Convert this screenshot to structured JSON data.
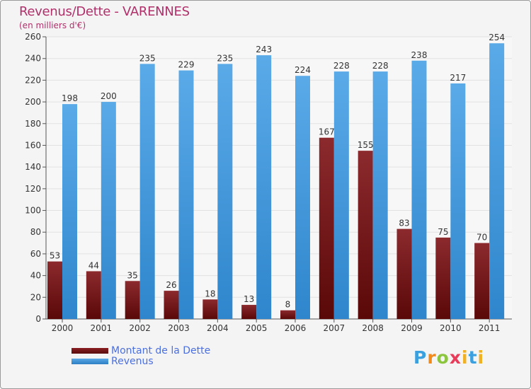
{
  "header": {
    "title": "Revenus/Dette - VARENNES",
    "subtitle": "(en milliers d'€)"
  },
  "legend": {
    "debt_label": "Montant de la Dette",
    "revenue_label": "Revenus"
  },
  "logo": {
    "text": "Proxiti"
  },
  "colors": {
    "debt": "#7a1a1e",
    "revenue": "#4a9fe0",
    "title": "#b0306a"
  },
  "chart_data": {
    "type": "bar",
    "title": "Revenus/Dette - VARENNES",
    "ylabel": "(en milliers d'€)",
    "xlabel": "",
    "categories": [
      "2000",
      "2001",
      "2002",
      "2003",
      "2004",
      "2005",
      "2006",
      "2007",
      "2008",
      "2009",
      "2010",
      "2011"
    ],
    "series": [
      {
        "name": "Montant de la Dette",
        "values": [
          53,
          44,
          35,
          26,
          18,
          13,
          8,
          167,
          155,
          83,
          75,
          70
        ]
      },
      {
        "name": "Revenus",
        "values": [
          198,
          200,
          235,
          229,
          235,
          243,
          224,
          228,
          228,
          238,
          217,
          254
        ]
      }
    ],
    "ylim": [
      0,
      260
    ],
    "yticks": [
      0,
      20,
      40,
      60,
      80,
      100,
      120,
      140,
      160,
      180,
      200,
      220,
      240,
      260
    ],
    "grid": true,
    "legend_position": "bottom-left"
  }
}
